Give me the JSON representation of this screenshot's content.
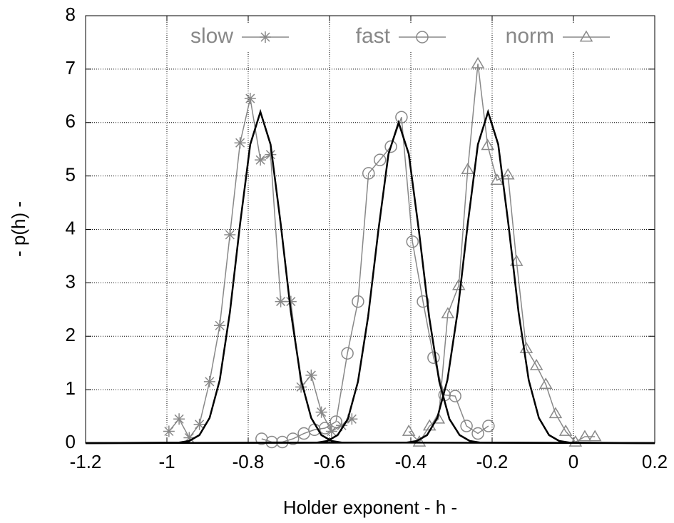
{
  "chart_data": {
    "type": "line",
    "xlabel": "Holder exponent  - h -",
    "ylabel": "- p(h) -",
    "xlim": [
      -1.2,
      0.2
    ],
    "ylim": [
      0,
      8
    ],
    "xticks": [
      -1.2,
      -1,
      -0.8,
      -0.6,
      -0.4,
      -0.2,
      0,
      0.2
    ],
    "yticks": [
      0,
      1,
      2,
      3,
      4,
      5,
      6,
      7,
      8
    ],
    "grid": true,
    "legend": "top",
    "series": [
      {
        "name": "slow",
        "marker": "star",
        "color": "#888888",
        "x": [
          -0.995,
          -0.97,
          -0.945,
          -0.92,
          -0.895,
          -0.87,
          -0.845,
          -0.82,
          -0.795,
          -0.77,
          -0.745,
          -0.72,
          -0.695,
          -0.67,
          -0.645,
          -0.62,
          -0.595,
          -0.57,
          -0.545
        ],
        "values": [
          0.22,
          0.45,
          0.1,
          0.35,
          1.15,
          2.2,
          3.9,
          5.62,
          6.45,
          5.3,
          5.4,
          2.65,
          2.65,
          1.05,
          1.27,
          0.58,
          0.22,
          0.33,
          0.45
        ]
      },
      {
        "name": "fast",
        "marker": "circle",
        "color": "#888888",
        "x": [
          -0.767,
          -0.742,
          -0.716,
          -0.69,
          -0.663,
          -0.637,
          -0.611,
          -0.584,
          -0.556,
          -0.53,
          -0.504,
          -0.476,
          -0.449,
          -0.423,
          -0.396,
          -0.37,
          -0.344,
          -0.317,
          -0.291,
          -0.263,
          -0.235,
          -0.209
        ],
        "values": [
          0.08,
          0.02,
          0.02,
          0.08,
          0.18,
          0.25,
          0.28,
          0.4,
          1.68,
          2.65,
          5.05,
          5.3,
          5.55,
          6.1,
          3.77,
          2.65,
          1.6,
          0.9,
          0.88,
          0.32,
          0.18,
          0.32
        ]
      },
      {
        "name": "norm",
        "marker": "triangle",
        "color": "#888888",
        "x": [
          -0.405,
          -0.379,
          -0.354,
          -0.332,
          -0.309,
          -0.282,
          -0.26,
          -0.235,
          -0.211,
          -0.188,
          -0.161,
          -0.14,
          -0.116,
          -0.091,
          -0.068,
          -0.044,
          -0.019,
          0.005,
          0.028,
          0.053
        ],
        "values": [
          0.22,
          0.02,
          0.32,
          0.45,
          2.42,
          2.95,
          5.12,
          7.1,
          5.57,
          4.92,
          5.02,
          3.4,
          1.77,
          1.45,
          1.1,
          0.55,
          0.22,
          0.02,
          0.12,
          0.12
        ]
      },
      {
        "color": "#000000",
        "x": [
          -1.2,
          -0.97,
          -0.945,
          -0.92,
          -0.895,
          -0.87,
          -0.845,
          -0.82,
          -0.795,
          -0.77,
          -0.745,
          -0.72,
          -0.695,
          -0.67,
          -0.645,
          -0.62,
          -0.595,
          -0.57,
          0.2
        ],
        "values": [
          0,
          0.01,
          0.04,
          0.15,
          0.47,
          1.18,
          2.45,
          4.1,
          5.59,
          6.2,
          5.59,
          4.1,
          2.45,
          1.18,
          0.47,
          0.15,
          0.04,
          0.01,
          0
        ]
      },
      {
        "color": "#000000",
        "x": [
          -1.2,
          -0.63,
          -0.605,
          -0.58,
          -0.555,
          -0.53,
          -0.505,
          -0.48,
          -0.455,
          -0.43,
          -0.405,
          -0.38,
          -0.355,
          -0.33,
          -0.305,
          -0.28,
          -0.255,
          -0.23,
          0.2
        ],
        "values": [
          0,
          0.01,
          0.04,
          0.15,
          0.45,
          1.15,
          2.37,
          3.97,
          5.41,
          6.0,
          5.41,
          3.97,
          2.37,
          1.15,
          0.45,
          0.15,
          0.04,
          0.01,
          0
        ]
      },
      {
        "color": "#000000",
        "x": [
          -1.2,
          -0.41,
          -0.385,
          -0.36,
          -0.335,
          -0.31,
          -0.285,
          -0.26,
          -0.235,
          -0.21,
          -0.185,
          -0.16,
          -0.135,
          -0.11,
          -0.085,
          -0.06,
          -0.035,
          -0.01,
          0.2
        ],
        "values": [
          0,
          0.01,
          0.04,
          0.15,
          0.47,
          1.18,
          2.45,
          4.1,
          5.59,
          6.2,
          5.59,
          4.1,
          2.45,
          1.18,
          0.47,
          0.15,
          0.04,
          0.01,
          0
        ]
      }
    ]
  }
}
